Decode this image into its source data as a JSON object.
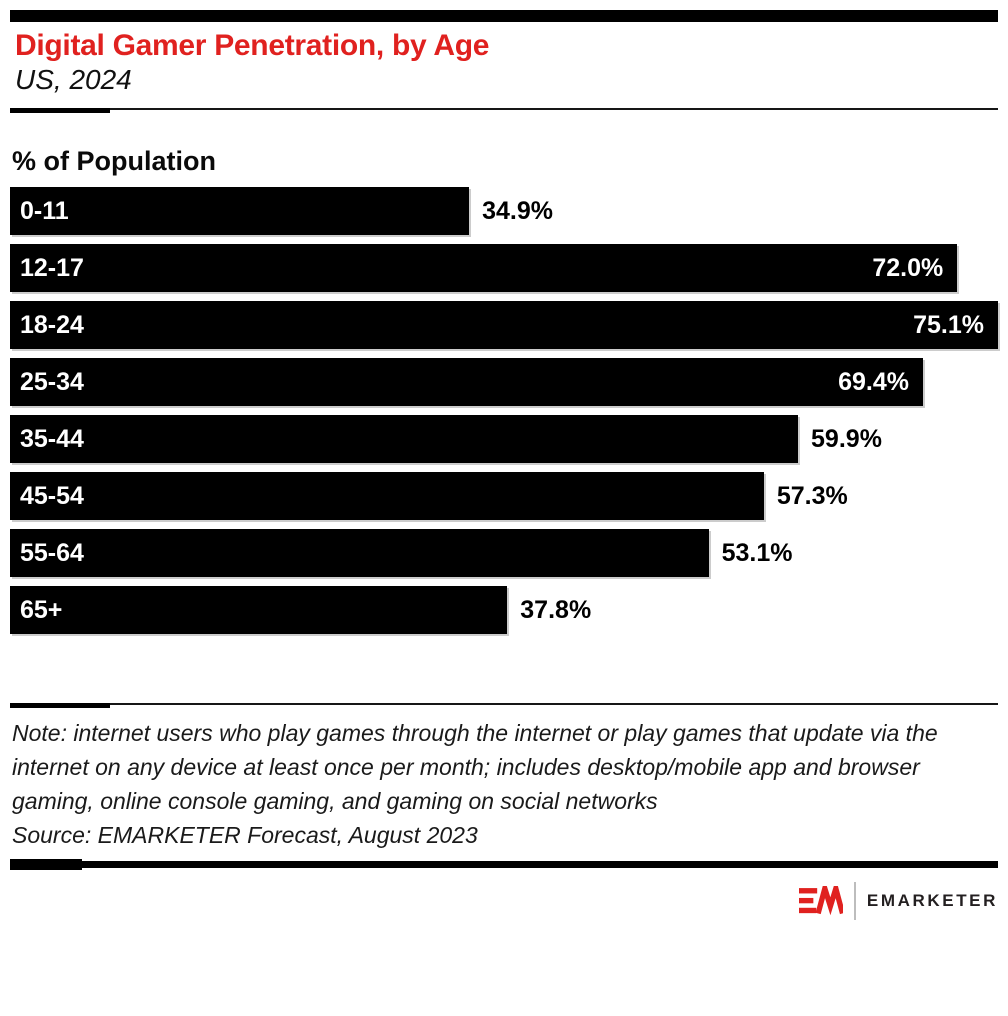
{
  "colors": {
    "accent_red": "#e0211f",
    "bar": "#000000",
    "note_text": "#1a1a1a",
    "logo_text": "#231f20"
  },
  "header": {
    "title": "Digital Gamer Penetration, by Age",
    "subtitle": "US, 2024"
  },
  "chart_data": {
    "type": "bar",
    "orientation": "horizontal",
    "title": "Digital Gamer Penetration, by Age",
    "subtitle": "US, 2024",
    "ylabel": "% of Population",
    "categories": [
      "0-11",
      "12-17",
      "18-24",
      "25-34",
      "35-44",
      "45-54",
      "55-64",
      "65+"
    ],
    "values": [
      34.9,
      72.0,
      75.1,
      69.4,
      59.9,
      57.3,
      53.1,
      37.8
    ],
    "value_labels": [
      "34.9%",
      "72.0%",
      "75.1%",
      "69.4%",
      "59.9%",
      "57.3%",
      "53.1%",
      "37.8%"
    ],
    "xlim": [
      0,
      75.1
    ],
    "unit": "%",
    "grid": false,
    "legend": "none",
    "bar_color": "#000000",
    "inside_label_threshold": 0.9
  },
  "footer": {
    "note_lines": [
      "Note: internet users who play games through the internet or play games that update via the",
      "internet on any device at least once per month; includes desktop/mobile app and browser",
      "gaming, online console gaming, and gaming on social networks",
      "Source: EMARKETER Forecast, August 2023"
    ]
  },
  "logo": {
    "mark": "EM-monogram",
    "text": "EMARKETER"
  }
}
